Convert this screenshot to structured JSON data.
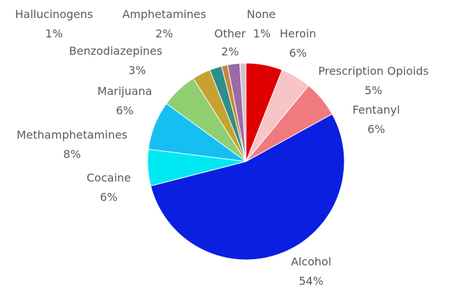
{
  "chart_data": {
    "type": "pie",
    "title": "",
    "slices": [
      {
        "label": "Heroin",
        "value": 6,
        "pct_text": "6%",
        "color": "#e00000"
      },
      {
        "label": "Prescription Opioids",
        "value": 5,
        "pct_text": "5%",
        "color": "#f7c4c8"
      },
      {
        "label": "Fentanyl",
        "value": 6,
        "pct_text": "6%",
        "color": "#f07b7e"
      },
      {
        "label": "Alcohol",
        "value": 54,
        "pct_text": "54%",
        "color": "#0a1fe0"
      },
      {
        "label": "Cocaine",
        "value": 6,
        "pct_text": "6%",
        "color": "#00e8f2"
      },
      {
        "label": "Methamphetamines",
        "value": 8,
        "pct_text": "8%",
        "color": "#16bff2"
      },
      {
        "label": "Marijuana",
        "value": 6,
        "pct_text": "6%",
        "color": "#8fcf72"
      },
      {
        "label": "Benzodiazepines",
        "value": 3,
        "pct_text": "3%",
        "color": "#c8a230"
      },
      {
        "label": "Amphetamines",
        "value": 2,
        "pct_text": "2%",
        "color": "#2e8f8a"
      },
      {
        "label": "Hallucinogens",
        "value": 1,
        "pct_text": "1%",
        "color": "#c9883a"
      },
      {
        "label": "Other",
        "value": 2,
        "pct_text": "2%",
        "color": "#9b6aa6"
      },
      {
        "label": "None",
        "value": 1,
        "pct_text": "1%",
        "color": "#d8c0cc"
      }
    ]
  }
}
